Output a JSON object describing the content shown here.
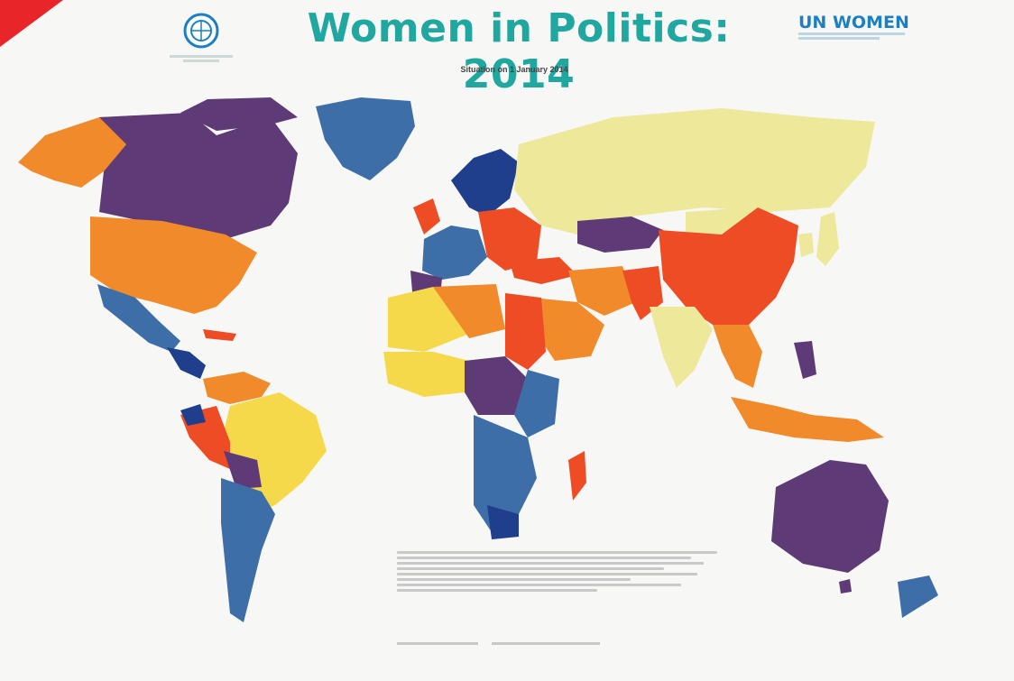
{
  "header": {
    "title": "Women in Politics: 2014",
    "subtitle": "Situation on 1 January 2014",
    "un_women_logo": "UN WOMEN"
  },
  "colors": {
    "purple": "#5e3a76",
    "orange": "#f08a2b",
    "red_orange": "#ee4c24",
    "yellow": "#f5d94a",
    "pale_yellow": "#ede89a",
    "blue": "#3d6ea8",
    "dark_blue": "#1f3f8c",
    "light_blue": "#9ec4d8",
    "teal": "#1fa7a0",
    "accent_red": "#e8262a"
  },
  "icons": {
    "ipu": "ipu-globe-icon",
    "un_women": "un-women-logo-icon"
  }
}
